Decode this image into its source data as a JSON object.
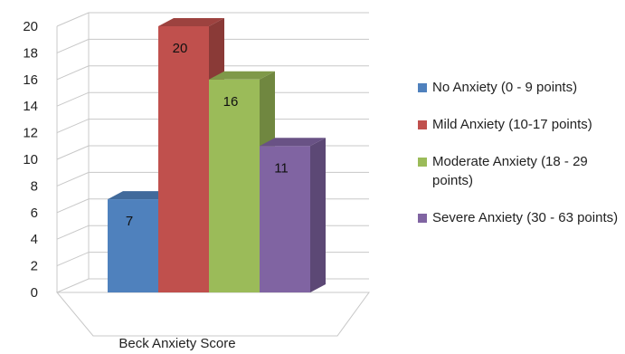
{
  "chart_data": {
    "type": "bar",
    "title": "",
    "xlabel": "Beck Anxiety Score",
    "ylabel": "",
    "ylim": [
      0,
      20
    ],
    "yticks": [
      0,
      2,
      4,
      6,
      8,
      10,
      12,
      14,
      16,
      18,
      20
    ],
    "grid": true,
    "legend_position": "right",
    "three_d": true,
    "series": [
      {
        "name": "No Anxiety (0 - 9 points)",
        "value": 7,
        "color": "#4F81BD"
      },
      {
        "name": "Mild Anxiety (10-17 points)",
        "value": 20,
        "color": "#C0504D"
      },
      {
        "name": "Moderate Anxiety (18 - 29 points)",
        "value": 16,
        "color": "#9BBB59"
      },
      {
        "name": "Severe Anxiety (30 - 63 points)",
        "value": 11,
        "color": "#8064A2"
      }
    ]
  }
}
